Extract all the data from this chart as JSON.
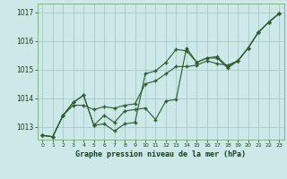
{
  "title": "Graphe pression niveau de la mer (hPa)",
  "bg_color": "#cce8e8",
  "grid_color": "#aac8c8",
  "line_color": "#2d5a2d",
  "xlim": [
    -0.5,
    23.5
  ],
  "ylim": [
    1012.55,
    1017.3
  ],
  "yticks": [
    1013,
    1014,
    1015,
    1016,
    1017
  ],
  "xticks": [
    0,
    1,
    2,
    3,
    4,
    5,
    6,
    7,
    8,
    9,
    10,
    11,
    12,
    13,
    14,
    15,
    16,
    17,
    18,
    19,
    20,
    21,
    22,
    23
  ],
  "series1": [
    1012.7,
    1012.65,
    1013.4,
    1013.75,
    1013.75,
    1013.6,
    1013.7,
    1013.65,
    1013.75,
    1013.8,
    1014.5,
    1014.6,
    1014.85,
    1015.1,
    1015.1,
    1015.15,
    1015.3,
    1015.2,
    1015.15,
    1015.3,
    1015.75,
    1016.3,
    1016.65,
    1016.95
  ],
  "series2": [
    1012.7,
    1012.65,
    1013.4,
    1013.85,
    1014.1,
    1013.05,
    1013.4,
    1013.15,
    1013.55,
    1013.6,
    1013.65,
    1013.25,
    1013.9,
    1013.95,
    1015.75,
    1015.25,
    1015.4,
    1015.45,
    1015.1,
    1015.3,
    1015.75,
    1016.3,
    1016.65,
    1016.95
  ],
  "series3": [
    1012.7,
    1012.65,
    1013.4,
    1013.85,
    1014.1,
    1013.05,
    1013.1,
    1012.85,
    1013.1,
    1013.15,
    1014.85,
    1014.95,
    1015.25,
    1015.7,
    1015.65,
    1015.25,
    1015.4,
    1015.4,
    1015.05,
    1015.3,
    1015.75,
    1016.3,
    1016.65,
    1016.95
  ]
}
